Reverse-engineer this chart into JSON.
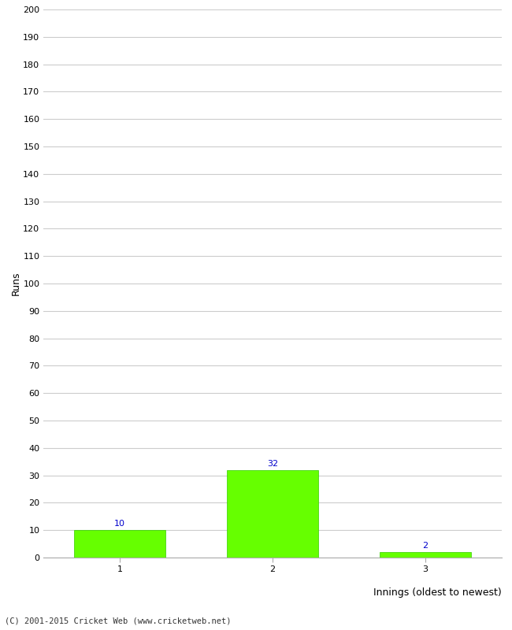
{
  "categories": [
    "1",
    "2",
    "3"
  ],
  "values": [
    10,
    32,
    2
  ],
  "bar_color": "#66ff00",
  "bar_edge_color": "#33cc00",
  "xlabel": "Innings (oldest to newest)",
  "ylabel": "Runs",
  "ylim": [
    0,
    200
  ],
  "yticks": [
    0,
    10,
    20,
    30,
    40,
    50,
    60,
    70,
    80,
    90,
    100,
    110,
    120,
    130,
    140,
    150,
    160,
    170,
    180,
    190,
    200
  ],
  "label_color": "#0000cc",
  "label_fontsize": 8,
  "footer": "(C) 2001-2015 Cricket Web (www.cricketweb.net)",
  "background_color": "#ffffff",
  "grid_color": "#cccccc",
  "tick_label_fontsize": 8,
  "axis_label_fontsize": 9
}
